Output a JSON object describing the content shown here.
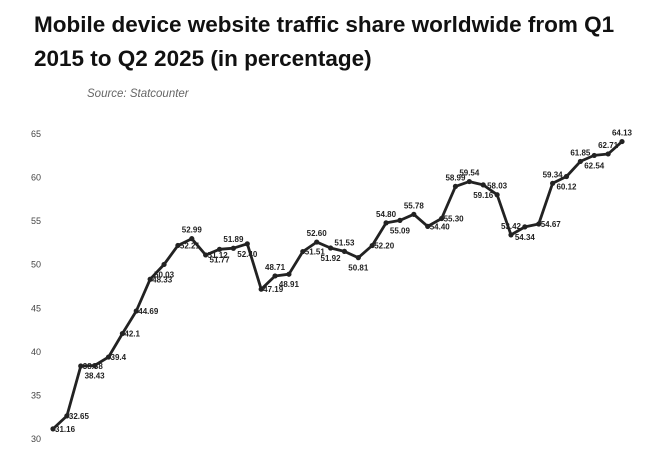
{
  "title": "Mobile device website traffic share worldwide from Q1 2015 to Q2 2025 (in percentage)",
  "source": "Source: Statcounter",
  "colors": {
    "line": "#222222",
    "background": "#ffffff"
  },
  "chart_data": {
    "type": "line",
    "title": "Mobile device website traffic share worldwide from Q1 2015 to Q2 2025 (in percentage)",
    "xlabel": "",
    "ylabel": "",
    "ylim": [
      30,
      65
    ],
    "yticks": [
      30,
      35,
      40,
      45,
      50,
      55,
      60,
      65
    ],
    "grid": false,
    "legend": "none",
    "series": [
      {
        "values": [
          31.16,
          32.65,
          38.38,
          38.43,
          39.4,
          42.1,
          44.69,
          48.33,
          50.03,
          52.21,
          52.99,
          51.12,
          51.77,
          51.89,
          52.4,
          47.19,
          48.71,
          48.91,
          51.51,
          52.6,
          51.92,
          51.53,
          50.81,
          52.2,
          54.8,
          55.09,
          55.78,
          54.4,
          55.3,
          58.99,
          59.54,
          59.16,
          58.03,
          53.42,
          54.34,
          54.67,
          59.34,
          60.12,
          61.85,
          62.54,
          62.71,
          64.13
        ]
      }
    ],
    "data_labels": [
      "31.16",
      "32.65",
      "38.38",
      "38.43",
      "39.4",
      "42.1",
      "44.69",
      "48.33",
      "50.03",
      "52.21",
      "52.99",
      "51.12",
      "51.77",
      "51.89",
      "52.40",
      "47.19",
      "48.71",
      "48.91",
      "51.51",
      "52.60",
      "51.92",
      "51.53",
      "50.81",
      "52.20",
      "54.80",
      "55.09",
      "55.78",
      "54.40",
      "55.30",
      "58.99",
      "59.54",
      "59.16",
      "58.03",
      "53.42",
      "54.34",
      "54.67",
      "59.34",
      "60.12",
      "61.85",
      "62.54",
      "62.71",
      "64.13"
    ],
    "label_side": [
      "r",
      "r",
      "r",
      "b",
      "r",
      "r",
      "r",
      "r",
      "b",
      "r",
      "t",
      "r",
      "b",
      "t",
      "b",
      "r",
      "t",
      "b",
      "r",
      "t",
      "b",
      "t",
      "b",
      "r",
      "t",
      "b",
      "t",
      "r",
      "r",
      "t",
      "t",
      "b",
      "t",
      "t",
      "b",
      "r",
      "t",
      "b",
      "t",
      "b",
      "t",
      "t"
    ]
  }
}
